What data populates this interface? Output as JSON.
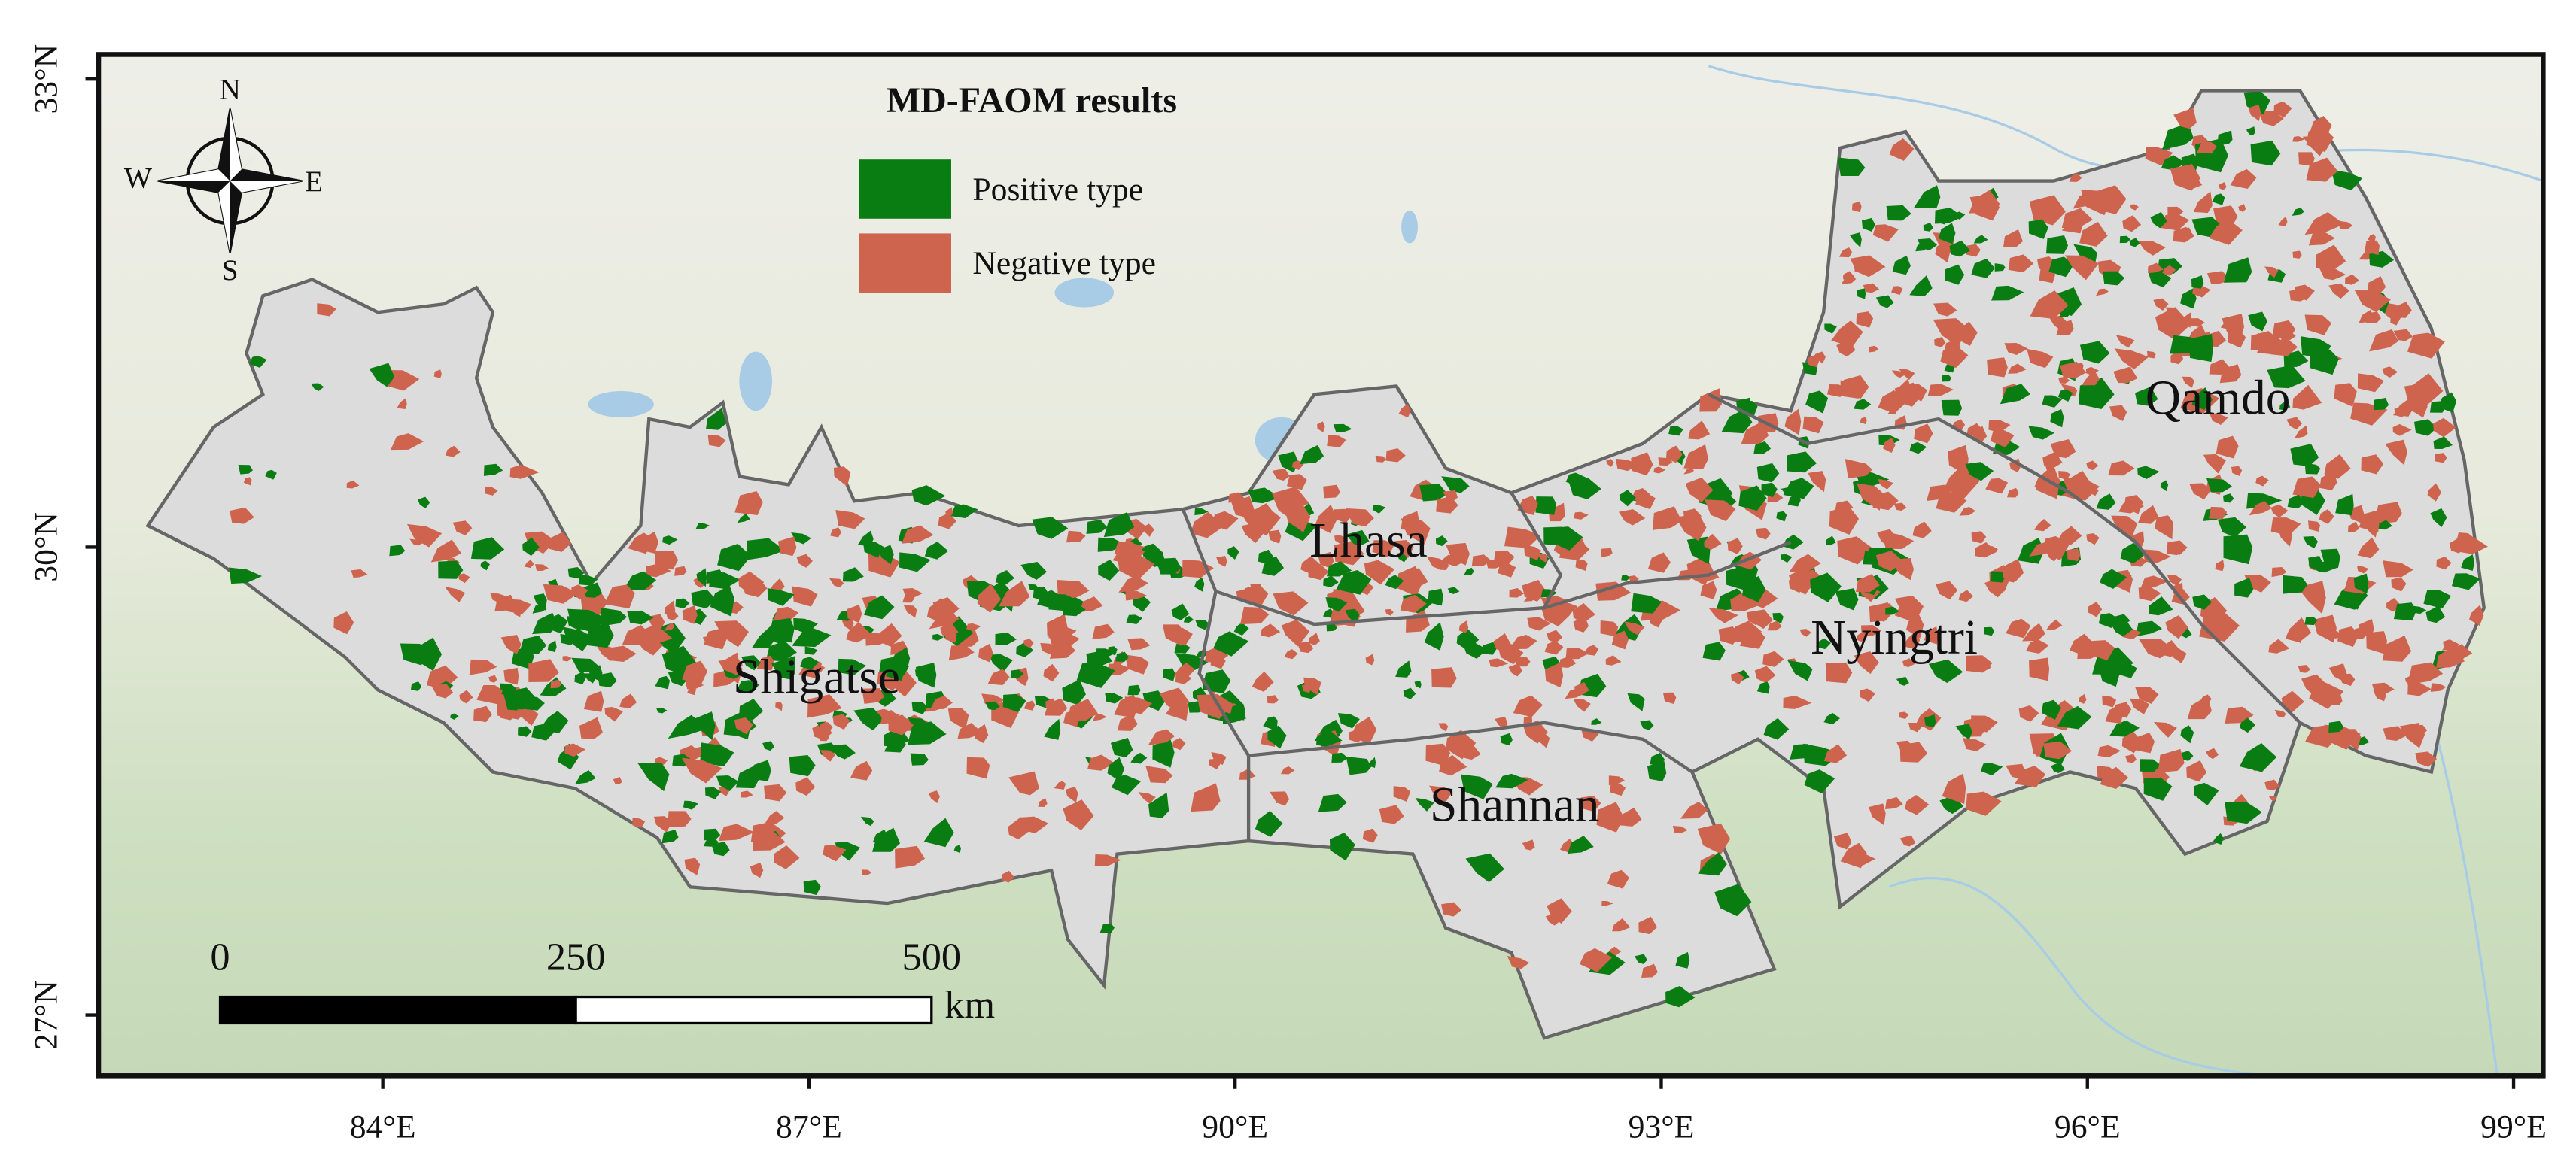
{
  "title": "MD-FAOM results",
  "legend": [
    {
      "label": "Positive type",
      "color": "#0a7d12"
    },
    {
      "label": "Negative type",
      "color": "#cf644e"
    }
  ],
  "regions": [
    "Shigatse",
    "Lhasa",
    "Shannan",
    "Nyingtri",
    "Qamdo"
  ],
  "compass": {
    "north": "N",
    "east": "E",
    "south": "S",
    "west": "W"
  },
  "lon_ticks": [
    {
      "value": 84,
      "label": "84°E"
    },
    {
      "value": 87,
      "label": "87°E"
    },
    {
      "value": 90,
      "label": "90°E"
    },
    {
      "value": 93,
      "label": "93°E"
    },
    {
      "value": 96,
      "label": "96°E"
    },
    {
      "value": 99,
      "label": "99°E"
    }
  ],
  "lat_ticks": [
    {
      "value": 33,
      "label": "33°N"
    },
    {
      "value": 30,
      "label": "30°N"
    },
    {
      "value": 27,
      "label": "27°N"
    }
  ],
  "scale_bar": {
    "labels": [
      0,
      250,
      500
    ],
    "unit": "km"
  }
}
